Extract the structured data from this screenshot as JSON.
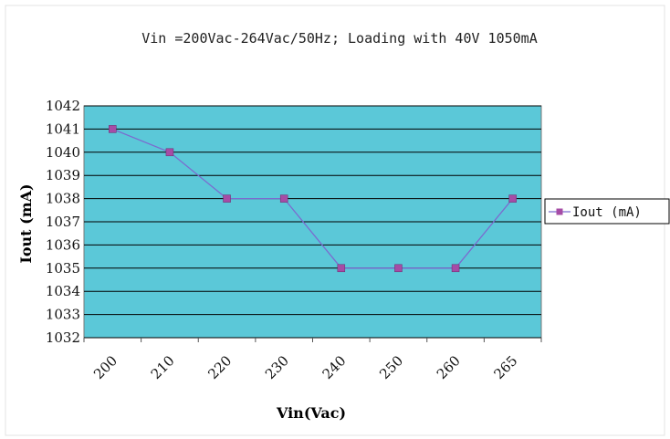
{
  "chart_data": {
    "type": "line",
    "title": "Vin =200Vac-264Vac/50Hz; Loading with 40V 1050mA",
    "xlabel": "Vin(Vac)",
    "ylabel": "Iout (mA)",
    "categories": [
      "200",
      "210",
      "220",
      "230",
      "240",
      "250",
      "260",
      "265"
    ],
    "series": [
      {
        "name": "Iout (mA)",
        "values": [
          1041,
          1040,
          1038,
          1038,
          1035,
          1035,
          1035,
          1038
        ]
      }
    ],
    "ylim": [
      1032,
      1042
    ],
    "yticks": [
      "1032",
      "1033",
      "1034",
      "1035",
      "1036",
      "1037",
      "1038",
      "1039",
      "1040",
      "1041",
      "1042"
    ],
    "grid": "horizontal",
    "legend": "right",
    "colors": {
      "plot_background": "#5BC8D8",
      "series": "#7B6BCF",
      "marker": "#A64CA6",
      "gridline": "#000000"
    }
  }
}
